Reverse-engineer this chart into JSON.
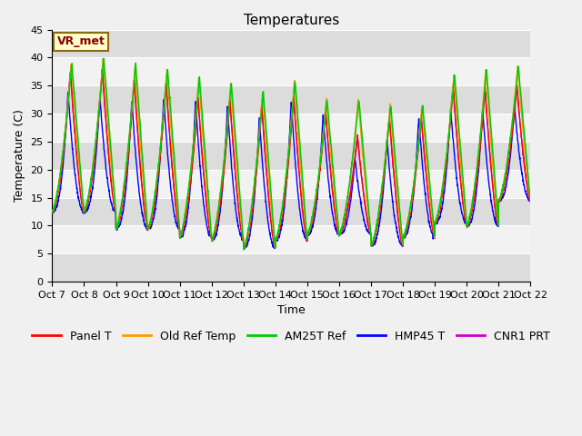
{
  "title": "Temperatures",
  "xlabel": "Time",
  "ylabel": "Temperature (C)",
  "ylim": [
    0,
    45
  ],
  "yticks": [
    0,
    5,
    10,
    15,
    20,
    25,
    30,
    35,
    40,
    45
  ],
  "x_labels": [
    "Oct 7",
    "Oct 8",
    "Oct 9",
    "Oct 10",
    "Oct 11",
    "Oct 12",
    "Oct 13",
    "Oct 14",
    "Oct 15",
    "Oct 16",
    "Oct 17",
    "Oct 18",
    "Oct 19",
    "Oct 20",
    "Oct 21",
    "Oct 22"
  ],
  "annotation": "VR_met",
  "series_colors": [
    "#ff0000",
    "#ff9900",
    "#00cc00",
    "#0000ff",
    "#cc00cc"
  ],
  "series_labels": [
    "Panel T",
    "Old Ref Temp",
    "AM25T Ref",
    "HMP45 T",
    "CNR1 PRT"
  ],
  "plot_bg_color": "#d8d8d8",
  "white_band_color": "#f0f0f0",
  "gray_band_color": "#d8d8d8",
  "n_days": 15,
  "n_points_per_day": 144,
  "day_min_temps": [
    12.5,
    12.5,
    9.5,
    9.5,
    8.0,
    7.5,
    6.0,
    7.5,
    8.5,
    8.5,
    6.5,
    8.0,
    10.5,
    10.0,
    14.5
  ],
  "day_max_green": [
    39.0,
    40.0,
    39.0,
    38.0,
    36.5,
    35.5,
    34.0,
    36.0,
    32.5,
    32.5,
    31.5,
    31.5,
    37.0,
    38.0,
    38.5
  ],
  "day_max_orange": [
    39.0,
    40.0,
    38.5,
    38.0,
    36.5,
    35.5,
    34.0,
    36.0,
    32.5,
    32.5,
    31.5,
    31.5,
    37.0,
    38.0,
    38.5
  ],
  "day_max_red": [
    37.5,
    38.0,
    36.0,
    35.5,
    33.0,
    32.5,
    31.5,
    33.0,
    30.5,
    26.0,
    29.5,
    29.5,
    35.0,
    34.5,
    35.0
  ],
  "day_max_blue": [
    34.0,
    33.0,
    32.5,
    33.0,
    32.5,
    31.5,
    29.5,
    32.5,
    30.0,
    22.0,
    25.5,
    29.5,
    31.0,
    31.0,
    31.5
  ],
  "day_max_purple": [
    37.5,
    38.0,
    36.0,
    35.5,
    33.0,
    32.5,
    31.5,
    33.0,
    30.5,
    26.0,
    29.5,
    29.5,
    35.0,
    34.5,
    35.0
  ],
  "title_fontsize": 11,
  "axis_fontsize": 9,
  "tick_fontsize": 8,
  "legend_fontsize": 9,
  "figsize": [
    6.4,
    4.8
  ],
  "dpi": 100
}
